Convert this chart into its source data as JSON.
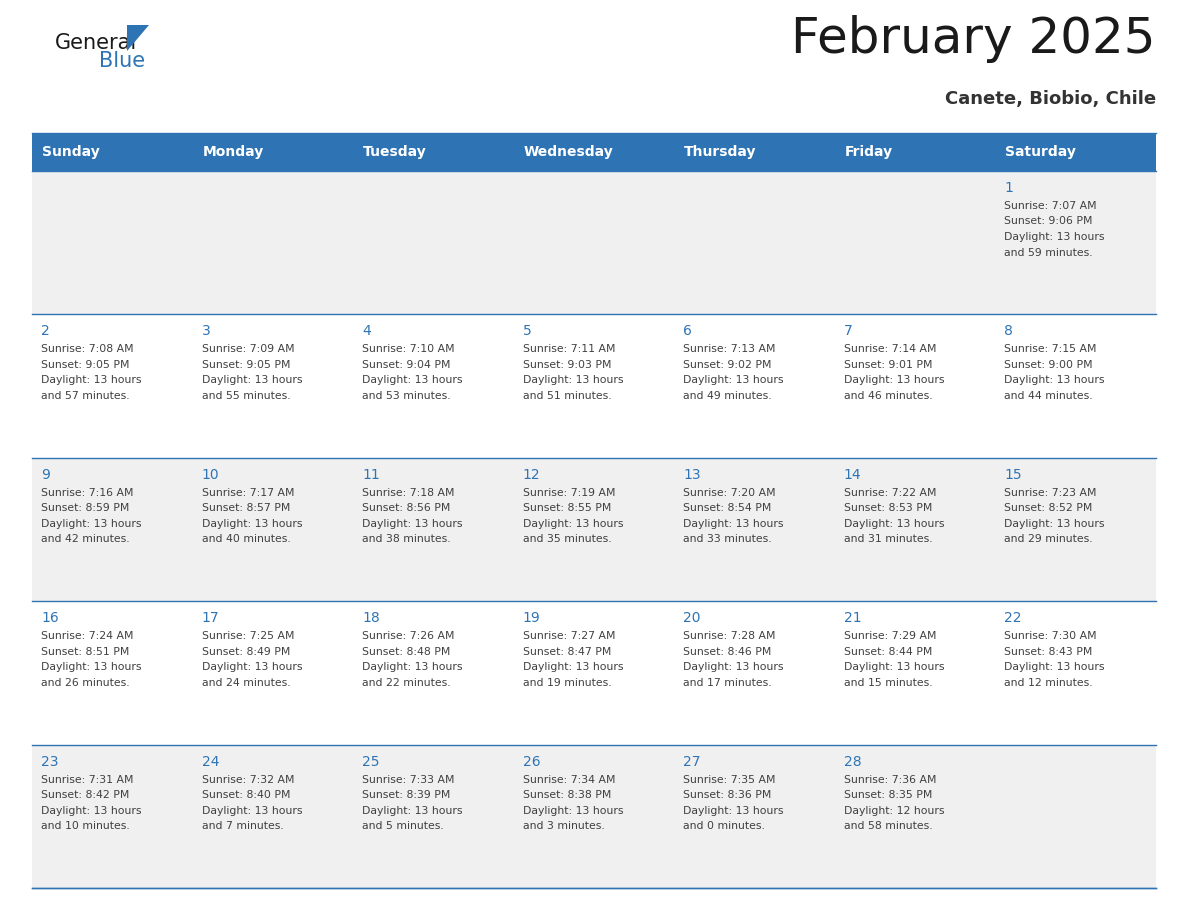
{
  "title": "February 2025",
  "subtitle": "Canete, Biobio, Chile",
  "days_of_week": [
    "Sunday",
    "Monday",
    "Tuesday",
    "Wednesday",
    "Thursday",
    "Friday",
    "Saturday"
  ],
  "header_bg": "#2e74b5",
  "header_text": "#ffffff",
  "row_bg_odd": "#f0f0f0",
  "row_bg_even": "#ffffff",
  "cell_border": "#2e74b5",
  "day_num_color": "#2e74b5",
  "info_color": "#404040",
  "title_color": "#1a1a1a",
  "subtitle_color": "#333333",
  "logo_general_color": "#1a1a1a",
  "logo_blue_color": "#2e74b5",
  "logo_triangle_color": "#2e74b5",
  "calendar": [
    [
      {
        "day": null
      },
      {
        "day": null
      },
      {
        "day": null
      },
      {
        "day": null
      },
      {
        "day": null
      },
      {
        "day": null
      },
      {
        "day": 1,
        "sunrise": "7:07 AM",
        "sunset": "9:06 PM",
        "daylight": "13 hours and 59 minutes."
      }
    ],
    [
      {
        "day": 2,
        "sunrise": "7:08 AM",
        "sunset": "9:05 PM",
        "daylight": "13 hours and 57 minutes."
      },
      {
        "day": 3,
        "sunrise": "7:09 AM",
        "sunset": "9:05 PM",
        "daylight": "13 hours and 55 minutes."
      },
      {
        "day": 4,
        "sunrise": "7:10 AM",
        "sunset": "9:04 PM",
        "daylight": "13 hours and 53 minutes."
      },
      {
        "day": 5,
        "sunrise": "7:11 AM",
        "sunset": "9:03 PM",
        "daylight": "13 hours and 51 minutes."
      },
      {
        "day": 6,
        "sunrise": "7:13 AM",
        "sunset": "9:02 PM",
        "daylight": "13 hours and 49 minutes."
      },
      {
        "day": 7,
        "sunrise": "7:14 AM",
        "sunset": "9:01 PM",
        "daylight": "13 hours and 46 minutes."
      },
      {
        "day": 8,
        "sunrise": "7:15 AM",
        "sunset": "9:00 PM",
        "daylight": "13 hours and 44 minutes."
      }
    ],
    [
      {
        "day": 9,
        "sunrise": "7:16 AM",
        "sunset": "8:59 PM",
        "daylight": "13 hours and 42 minutes."
      },
      {
        "day": 10,
        "sunrise": "7:17 AM",
        "sunset": "8:57 PM",
        "daylight": "13 hours and 40 minutes."
      },
      {
        "day": 11,
        "sunrise": "7:18 AM",
        "sunset": "8:56 PM",
        "daylight": "13 hours and 38 minutes."
      },
      {
        "day": 12,
        "sunrise": "7:19 AM",
        "sunset": "8:55 PM",
        "daylight": "13 hours and 35 minutes."
      },
      {
        "day": 13,
        "sunrise": "7:20 AM",
        "sunset": "8:54 PM",
        "daylight": "13 hours and 33 minutes."
      },
      {
        "day": 14,
        "sunrise": "7:22 AM",
        "sunset": "8:53 PM",
        "daylight": "13 hours and 31 minutes."
      },
      {
        "day": 15,
        "sunrise": "7:23 AM",
        "sunset": "8:52 PM",
        "daylight": "13 hours and 29 minutes."
      }
    ],
    [
      {
        "day": 16,
        "sunrise": "7:24 AM",
        "sunset": "8:51 PM",
        "daylight": "13 hours and 26 minutes."
      },
      {
        "day": 17,
        "sunrise": "7:25 AM",
        "sunset": "8:49 PM",
        "daylight": "13 hours and 24 minutes."
      },
      {
        "day": 18,
        "sunrise": "7:26 AM",
        "sunset": "8:48 PM",
        "daylight": "13 hours and 22 minutes."
      },
      {
        "day": 19,
        "sunrise": "7:27 AM",
        "sunset": "8:47 PM",
        "daylight": "13 hours and 19 minutes."
      },
      {
        "day": 20,
        "sunrise": "7:28 AM",
        "sunset": "8:46 PM",
        "daylight": "13 hours and 17 minutes."
      },
      {
        "day": 21,
        "sunrise": "7:29 AM",
        "sunset": "8:44 PM",
        "daylight": "13 hours and 15 minutes."
      },
      {
        "day": 22,
        "sunrise": "7:30 AM",
        "sunset": "8:43 PM",
        "daylight": "13 hours and 12 minutes."
      }
    ],
    [
      {
        "day": 23,
        "sunrise": "7:31 AM",
        "sunset": "8:42 PM",
        "daylight": "13 hours and 10 minutes."
      },
      {
        "day": 24,
        "sunrise": "7:32 AM",
        "sunset": "8:40 PM",
        "daylight": "13 hours and 7 minutes."
      },
      {
        "day": 25,
        "sunrise": "7:33 AM",
        "sunset": "8:39 PM",
        "daylight": "13 hours and 5 minutes."
      },
      {
        "day": 26,
        "sunrise": "7:34 AM",
        "sunset": "8:38 PM",
        "daylight": "13 hours and 3 minutes."
      },
      {
        "day": 27,
        "sunrise": "7:35 AM",
        "sunset": "8:36 PM",
        "daylight": "13 hours and 0 minutes."
      },
      {
        "day": 28,
        "sunrise": "7:36 AM",
        "sunset": "8:35 PM",
        "daylight": "12 hours and 58 minutes."
      },
      {
        "day": null
      }
    ]
  ]
}
